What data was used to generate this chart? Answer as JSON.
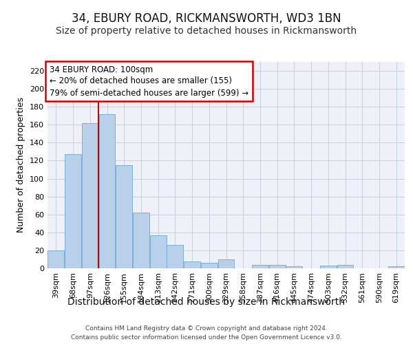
{
  "title1": "34, EBURY ROAD, RICKMANSWORTH, WD3 1BN",
  "title2": "Size of property relative to detached houses in Rickmansworth",
  "xlabel": "Distribution of detached houses by size in Rickmansworth",
  "ylabel": "Number of detached properties",
  "categories": [
    "39sqm",
    "68sqm",
    "97sqm",
    "126sqm",
    "155sqm",
    "184sqm",
    "213sqm",
    "242sqm",
    "271sqm",
    "300sqm",
    "329sqm",
    "358sqm",
    "387sqm",
    "416sqm",
    "445sqm",
    "474sqm",
    "503sqm",
    "532sqm",
    "561sqm",
    "590sqm",
    "619sqm"
  ],
  "values": [
    20,
    127,
    162,
    172,
    115,
    62,
    37,
    26,
    8,
    6,
    10,
    0,
    4,
    4,
    2,
    0,
    3,
    4,
    0,
    0,
    2
  ],
  "bar_color": "#b8d0ea",
  "bar_edge_color": "#6aaad4",
  "vline_color": "#cc0000",
  "annotation_text": "34 EBURY ROAD: 100sqm\n← 20% of detached houses are smaller (155)\n79% of semi-detached houses are larger (599) →",
  "annotation_box_color": "#cc0000",
  "ylim": [
    0,
    230
  ],
  "yticks": [
    0,
    20,
    40,
    60,
    80,
    100,
    120,
    140,
    160,
    180,
    200,
    220
  ],
  "footer1": "Contains HM Land Registry data © Crown copyright and database right 2024.",
  "footer2": "Contains public sector information licensed under the Open Government Licence v3.0.",
  "bg_color": "#eef2f8",
  "fig_color": "#ffffff",
  "title1_fontsize": 12,
  "title2_fontsize": 10,
  "xlabel_fontsize": 10,
  "ylabel_fontsize": 9,
  "tick_fontsize": 8,
  "ann_fontsize": 8.5,
  "footer_fontsize": 6.5
}
